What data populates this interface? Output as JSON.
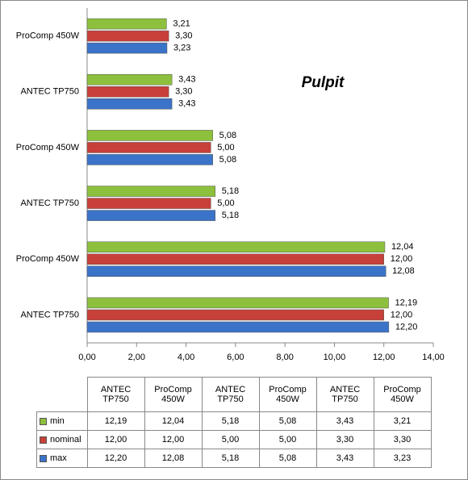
{
  "chart_data": {
    "type": "hbar",
    "title": "Pulpit",
    "categories": [
      "ANTEC TP750",
      "ProComp 450W",
      "ANTEC TP750",
      "ProComp 450W",
      "ANTEC TP750",
      "ProComp 450W"
    ],
    "series": [
      {
        "name": "min",
        "color": "#8dc03c",
        "values": [
          12.19,
          12.04,
          5.18,
          5.08,
          3.43,
          3.21
        ],
        "value_labels": [
          "12,19",
          "12,04",
          "5,18",
          "5,08",
          "3,43",
          "3,21"
        ]
      },
      {
        "name": "nominal",
        "color": "#c8403a",
        "values": [
          12.0,
          12.0,
          5.0,
          5.0,
          3.3,
          3.3
        ],
        "value_labels": [
          "12,00",
          "12,00",
          "5,00",
          "5,00",
          "3,30",
          "3,30"
        ]
      },
      {
        "name": "max",
        "color": "#3b73c8",
        "values": [
          12.2,
          12.08,
          5.18,
          5.08,
          3.43,
          3.23
        ],
        "value_labels": [
          "12,20",
          "12,08",
          "5,18",
          "5,08",
          "3,43",
          "3,23"
        ]
      }
    ],
    "xlim": [
      0,
      14
    ],
    "xticks": [
      {
        "value": 0,
        "label": "0,00"
      },
      {
        "value": 2,
        "label": "2,00"
      },
      {
        "value": 4,
        "label": "4,00"
      },
      {
        "value": 6,
        "label": "6,00"
      },
      {
        "value": 8,
        "label": "8,00"
      },
      {
        "value": 10,
        "label": "10,00"
      },
      {
        "value": 12,
        "label": "12,00"
      },
      {
        "value": 14,
        "label": "14,00"
      }
    ],
    "grid": false
  }
}
